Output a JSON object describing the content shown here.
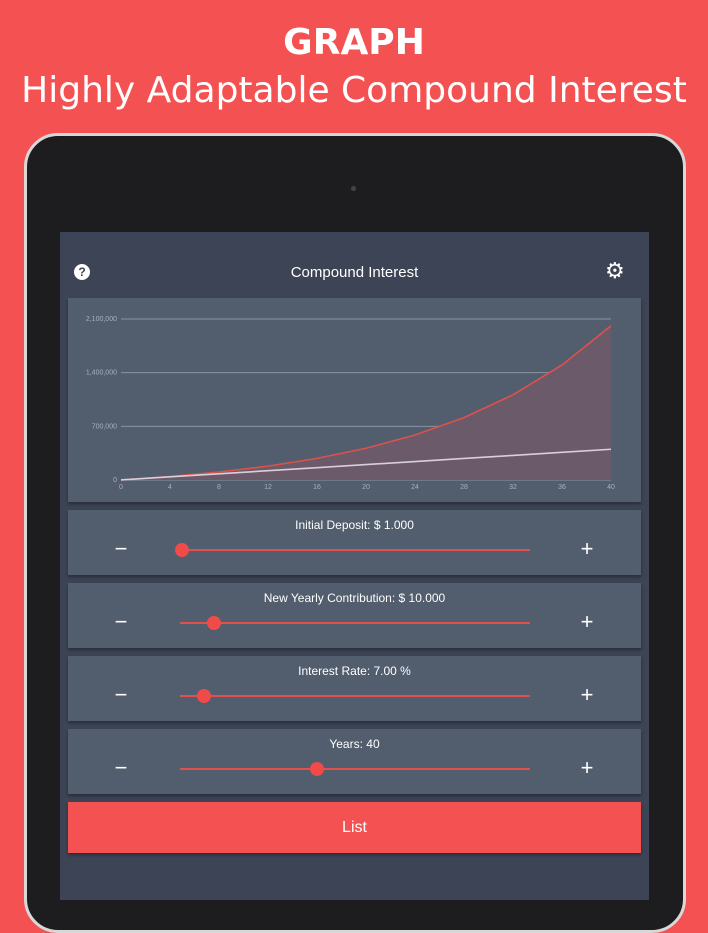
{
  "banner": {
    "title": "GRAPH",
    "subtitle": "Highly Adaptable Compound Interest"
  },
  "app": {
    "title": "Compound Interest",
    "help_icon": "help-circle-icon",
    "settings_icon": "gear-icon"
  },
  "chart_data": {
    "type": "area",
    "x": [
      0,
      4,
      8,
      12,
      16,
      20,
      24,
      28,
      32,
      36,
      40
    ],
    "x_ticks": [
      "0",
      "4",
      "8",
      "12",
      "16",
      "20",
      "24",
      "28",
      "32",
      "36",
      "40"
    ],
    "y_ticks": [
      "0",
      "700,000",
      "1,400,000",
      "2,100,000"
    ],
    "ylim": [
      0,
      2100000
    ],
    "xlim": [
      0,
      40
    ],
    "grid": "horizontal",
    "series": [
      {
        "values": [
          1000,
          45710,
          104317,
          181150,
          281975,
          413825,
          586839,
          813626,
          1110896,
          1500558,
          2011325
        ],
        "color": "#e0504c",
        "fill": true
      },
      {
        "values": [
          1000,
          41000,
          81000,
          121000,
          161000,
          201000,
          241000,
          281000,
          321000,
          361000,
          401000
        ],
        "color": "#d8d0d8"
      }
    ]
  },
  "sliders": [
    {
      "label": "Initial Deposit: $ 1.000",
      "value": 0.006
    },
    {
      "label": "New Yearly Contribution: $ 10.000",
      "value": 0.097
    },
    {
      "label": "Interest Rate: 7.00 %",
      "value": 0.069
    },
    {
      "label": "Years: 40",
      "value": 0.39
    }
  ],
  "controls": {
    "minus": "−",
    "plus": "+"
  },
  "list_button": "List"
}
